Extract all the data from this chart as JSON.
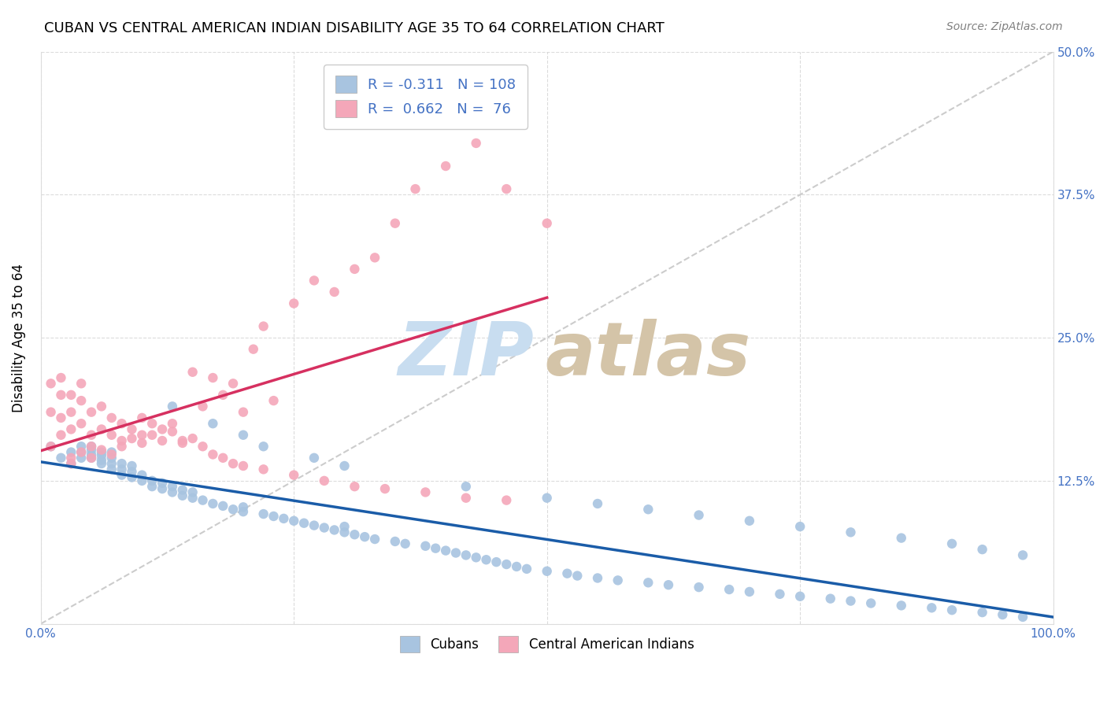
{
  "title": "CUBAN VS CENTRAL AMERICAN INDIAN DISABILITY AGE 35 TO 64 CORRELATION CHART",
  "source": "Source: ZipAtlas.com",
  "ylabel": "Disability Age 35 to 64",
  "xlim": [
    0,
    1.0
  ],
  "ylim": [
    0,
    0.5
  ],
  "blue_R": -0.311,
  "blue_N": 108,
  "pink_R": 0.662,
  "pink_N": 76,
  "blue_color": "#a8c4e0",
  "pink_color": "#f4a7b9",
  "blue_line_color": "#1a5ca8",
  "pink_line_color": "#d63060",
  "diag_color": "#cccccc",
  "tick_color": "#4472c4",
  "blue_scatter_x": [
    0.01,
    0.02,
    0.03,
    0.03,
    0.04,
    0.04,
    0.04,
    0.05,
    0.05,
    0.05,
    0.05,
    0.06,
    0.06,
    0.06,
    0.06,
    0.07,
    0.07,
    0.07,
    0.07,
    0.08,
    0.08,
    0.08,
    0.09,
    0.09,
    0.09,
    0.1,
    0.1,
    0.11,
    0.11,
    0.12,
    0.12,
    0.13,
    0.13,
    0.14,
    0.14,
    0.15,
    0.15,
    0.16,
    0.17,
    0.18,
    0.19,
    0.2,
    0.2,
    0.22,
    0.23,
    0.24,
    0.25,
    0.26,
    0.27,
    0.28,
    0.29,
    0.3,
    0.3,
    0.31,
    0.32,
    0.33,
    0.35,
    0.36,
    0.38,
    0.39,
    0.4,
    0.41,
    0.42,
    0.43,
    0.44,
    0.45,
    0.46,
    0.47,
    0.48,
    0.5,
    0.52,
    0.53,
    0.55,
    0.57,
    0.6,
    0.62,
    0.65,
    0.68,
    0.7,
    0.73,
    0.75,
    0.78,
    0.8,
    0.82,
    0.85,
    0.88,
    0.9,
    0.93,
    0.95,
    0.97,
    0.13,
    0.17,
    0.2,
    0.22,
    0.27,
    0.3,
    0.42,
    0.5,
    0.55,
    0.6,
    0.65,
    0.7,
    0.75,
    0.8,
    0.85,
    0.9,
    0.93,
    0.97
  ],
  "blue_scatter_y": [
    0.155,
    0.145,
    0.14,
    0.15,
    0.145,
    0.15,
    0.155,
    0.145,
    0.148,
    0.152,
    0.155,
    0.14,
    0.143,
    0.147,
    0.15,
    0.135,
    0.14,
    0.145,
    0.15,
    0.13,
    0.135,
    0.14,
    0.128,
    0.133,
    0.138,
    0.125,
    0.13,
    0.12,
    0.125,
    0.118,
    0.123,
    0.115,
    0.12,
    0.112,
    0.117,
    0.11,
    0.115,
    0.108,
    0.105,
    0.103,
    0.1,
    0.098,
    0.102,
    0.096,
    0.094,
    0.092,
    0.09,
    0.088,
    0.086,
    0.084,
    0.082,
    0.08,
    0.085,
    0.078,
    0.076,
    0.074,
    0.072,
    0.07,
    0.068,
    0.066,
    0.064,
    0.062,
    0.06,
    0.058,
    0.056,
    0.054,
    0.052,
    0.05,
    0.048,
    0.046,
    0.044,
    0.042,
    0.04,
    0.038,
    0.036,
    0.034,
    0.032,
    0.03,
    0.028,
    0.026,
    0.024,
    0.022,
    0.02,
    0.018,
    0.016,
    0.014,
    0.012,
    0.01,
    0.008,
    0.006,
    0.19,
    0.175,
    0.165,
    0.155,
    0.145,
    0.138,
    0.12,
    0.11,
    0.105,
    0.1,
    0.095,
    0.09,
    0.085,
    0.08,
    0.075,
    0.07,
    0.065,
    0.06
  ],
  "pink_scatter_x": [
    0.01,
    0.01,
    0.01,
    0.02,
    0.02,
    0.02,
    0.02,
    0.03,
    0.03,
    0.03,
    0.03,
    0.04,
    0.04,
    0.04,
    0.05,
    0.05,
    0.05,
    0.06,
    0.06,
    0.07,
    0.07,
    0.08,
    0.08,
    0.09,
    0.1,
    0.1,
    0.11,
    0.12,
    0.13,
    0.14,
    0.15,
    0.16,
    0.17,
    0.18,
    0.19,
    0.2,
    0.21,
    0.22,
    0.23,
    0.25,
    0.27,
    0.29,
    0.31,
    0.33,
    0.35,
    0.37,
    0.4,
    0.43,
    0.46,
    0.5,
    0.03,
    0.04,
    0.05,
    0.06,
    0.07,
    0.08,
    0.09,
    0.1,
    0.11,
    0.12,
    0.13,
    0.14,
    0.15,
    0.16,
    0.17,
    0.18,
    0.19,
    0.2,
    0.22,
    0.25,
    0.28,
    0.31,
    0.34,
    0.38,
    0.42,
    0.46
  ],
  "pink_scatter_y": [
    0.155,
    0.185,
    0.21,
    0.165,
    0.18,
    0.2,
    0.215,
    0.17,
    0.185,
    0.2,
    0.145,
    0.175,
    0.195,
    0.21,
    0.165,
    0.185,
    0.155,
    0.17,
    0.19,
    0.18,
    0.165,
    0.175,
    0.16,
    0.17,
    0.165,
    0.18,
    0.175,
    0.17,
    0.175,
    0.16,
    0.22,
    0.19,
    0.215,
    0.2,
    0.21,
    0.185,
    0.24,
    0.26,
    0.195,
    0.28,
    0.3,
    0.29,
    0.31,
    0.32,
    0.35,
    0.38,
    0.4,
    0.42,
    0.38,
    0.35,
    0.14,
    0.15,
    0.145,
    0.152,
    0.148,
    0.155,
    0.162,
    0.158,
    0.165,
    0.16,
    0.168,
    0.158,
    0.162,
    0.155,
    0.148,
    0.145,
    0.14,
    0.138,
    0.135,
    0.13,
    0.125,
    0.12,
    0.118,
    0.115,
    0.11,
    0.108
  ]
}
